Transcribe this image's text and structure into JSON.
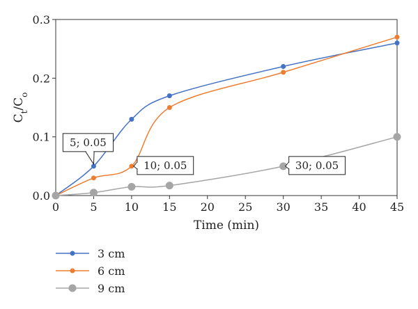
{
  "chart_data": {
    "type": "line",
    "title": "",
    "xlabel": "Time (min)",
    "ylabel_main": "C",
    "ylabel_sub1": "t",
    "ylabel_mid": "/C",
    "ylabel_sub2": "o",
    "xlim": [
      0,
      45
    ],
    "ylim": [
      0,
      0.3
    ],
    "x_ticks": [
      0,
      5,
      10,
      15,
      20,
      25,
      30,
      35,
      40,
      45
    ],
    "y_ticks": [
      0,
      0.1,
      0.2,
      0.3
    ],
    "y_tick_labels": [
      "0.0",
      "0.1",
      "0.2",
      "0.3"
    ],
    "grid": false,
    "legend_position": "bottom-left",
    "series": [
      {
        "name": "3 cm",
        "color": "#4472C4",
        "marker_size": "small",
        "x": [
          0,
          5,
          10,
          15,
          30,
          45
        ],
        "y": [
          0,
          0.05,
          0.13,
          0.17,
          0.22,
          0.26
        ]
      },
      {
        "name": "6 cm",
        "color": "#ED7D31",
        "marker_size": "small",
        "x": [
          0,
          5,
          10,
          15,
          30,
          45
        ],
        "y": [
          0,
          0.03,
          0.05,
          0.15,
          0.21,
          0.27
        ]
      },
      {
        "name": "9 cm",
        "color": "#A5A5A5",
        "marker_size": "large",
        "x": [
          0,
          5,
          10,
          15,
          30,
          45
        ],
        "y": [
          0,
          0.005,
          0.015,
          0.017,
          0.05,
          0.1
        ]
      }
    ],
    "annotations": [
      {
        "text": "5; 0.05",
        "x": 5,
        "y": 0.05,
        "side": "above-left"
      },
      {
        "text": "10; 0.05",
        "x": 10,
        "y": 0.05,
        "side": "right"
      },
      {
        "text": "30; 0.05",
        "x": 30,
        "y": 0.05,
        "side": "right"
      }
    ]
  }
}
